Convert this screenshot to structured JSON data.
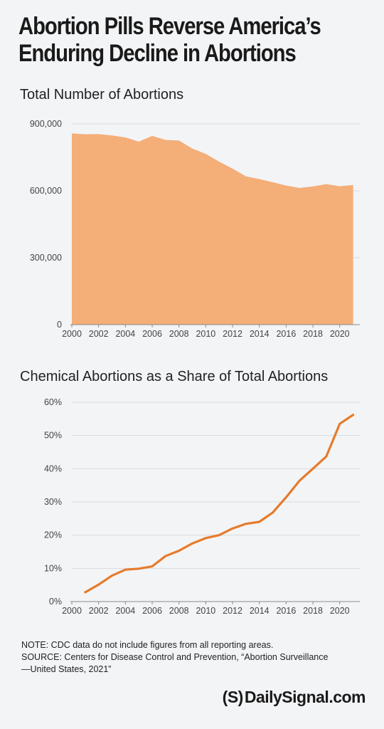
{
  "title_line1": "Abortion Pills Reverse America’s",
  "title_line2": "Enduring Decline in Abortions",
  "chart_data": [
    {
      "type": "area",
      "title": "Total Number of Abortions",
      "xlabel": "",
      "ylabel": "",
      "x": [
        2000,
        2001,
        2002,
        2003,
        2004,
        2005,
        2006,
        2007,
        2008,
        2009,
        2010,
        2011,
        2012,
        2013,
        2014,
        2015,
        2016,
        2017,
        2018,
        2019,
        2020,
        2021
      ],
      "values": [
        857475,
        853485,
        854122,
        848163,
        839226,
        820151,
        846181,
        827609,
        825564,
        789217,
        765651,
        730322,
        699202,
        664435,
        652639,
        638169,
        623471,
        612719,
        619591,
        629898,
        620327,
        625978
      ],
      "y_ticks": [
        0,
        300000,
        600000,
        900000
      ],
      "y_tick_labels": [
        "0",
        "300,000",
        "600,000",
        "900,000"
      ],
      "x_ticks": [
        "2000",
        "2002",
        "2004",
        "2006",
        "2008",
        "2010",
        "2012",
        "2014",
        "2016",
        "2018",
        "2020"
      ],
      "ylim": [
        0,
        900000
      ],
      "xlim": [
        2000,
        2021.5
      ],
      "grid": true,
      "color": "#f4ae78"
    },
    {
      "type": "line",
      "title": "Chemical Abortions as a Share of Total Abortions",
      "xlabel": "",
      "ylabel": "",
      "x": [
        2001,
        2002,
        2003,
        2004,
        2005,
        2006,
        2007,
        2008,
        2009,
        2010,
        2011,
        2012,
        2013,
        2014,
        2015,
        2016,
        2017,
        2018,
        2019,
        2020,
        2021
      ],
      "values": [
        2.8,
        5.1,
        7.8,
        9.6,
        9.9,
        10.6,
        13.7,
        15.3,
        17.5,
        19.1,
        20.0,
        22.0,
        23.4,
        24.0,
        26.8,
        31.4,
        36.4,
        40.0,
        43.7,
        53.5,
        56.2
      ],
      "y_ticks": [
        0,
        10,
        20,
        30,
        40,
        50,
        60
      ],
      "y_tick_labels": [
        "0%",
        "10%",
        "20%",
        "30%",
        "40%",
        "50%",
        "60%"
      ],
      "x_ticks": [
        "2000",
        "2002",
        "2004",
        "2006",
        "2008",
        "2010",
        "2012",
        "2014",
        "2016",
        "2018",
        "2020"
      ],
      "ylim": [
        0,
        60
      ],
      "xlim": [
        2000,
        2021.5
      ],
      "grid": true,
      "color": "#e57b2c"
    }
  ],
  "note": "NOTE: CDC data do not include figures from all reporting areas.",
  "source_line1": "SOURCE: Centers for Disease Control and Prevention, “Abortion Surveillance",
  "source_line2": "—United States, 2021”",
  "logo": {
    "mark": "(S)",
    "text": "DailySignal.com"
  }
}
